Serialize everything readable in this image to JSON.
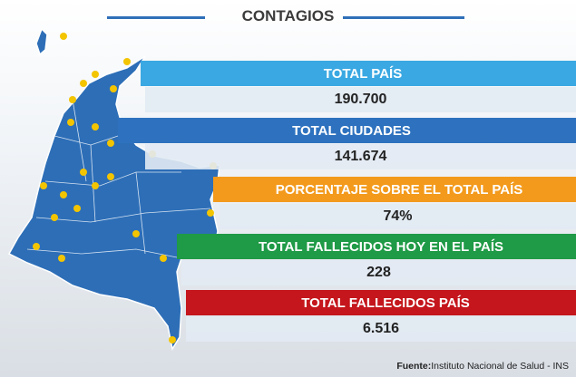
{
  "header": {
    "title": "CONTAGIOS"
  },
  "panels": [
    {
      "label": "TOTAL PAÍS",
      "value": "190.700"
    },
    {
      "label": "TOTAL CIUDADES",
      "value": "141.674"
    },
    {
      "label": "PORCENTAJE SOBRE EL TOTAL PAÍS",
      "value": "74%"
    },
    {
      "label": "TOTAL FALLECIDOS HOY EN EL PAÍS",
      "value": "228"
    },
    {
      "label": "TOTAL FALLECIDOS PAÍS",
      "value": "6.516"
    }
  ],
  "source": {
    "prefix": "Fuente:",
    "text": "Instituto Nacional de Salud - INS"
  }
}
